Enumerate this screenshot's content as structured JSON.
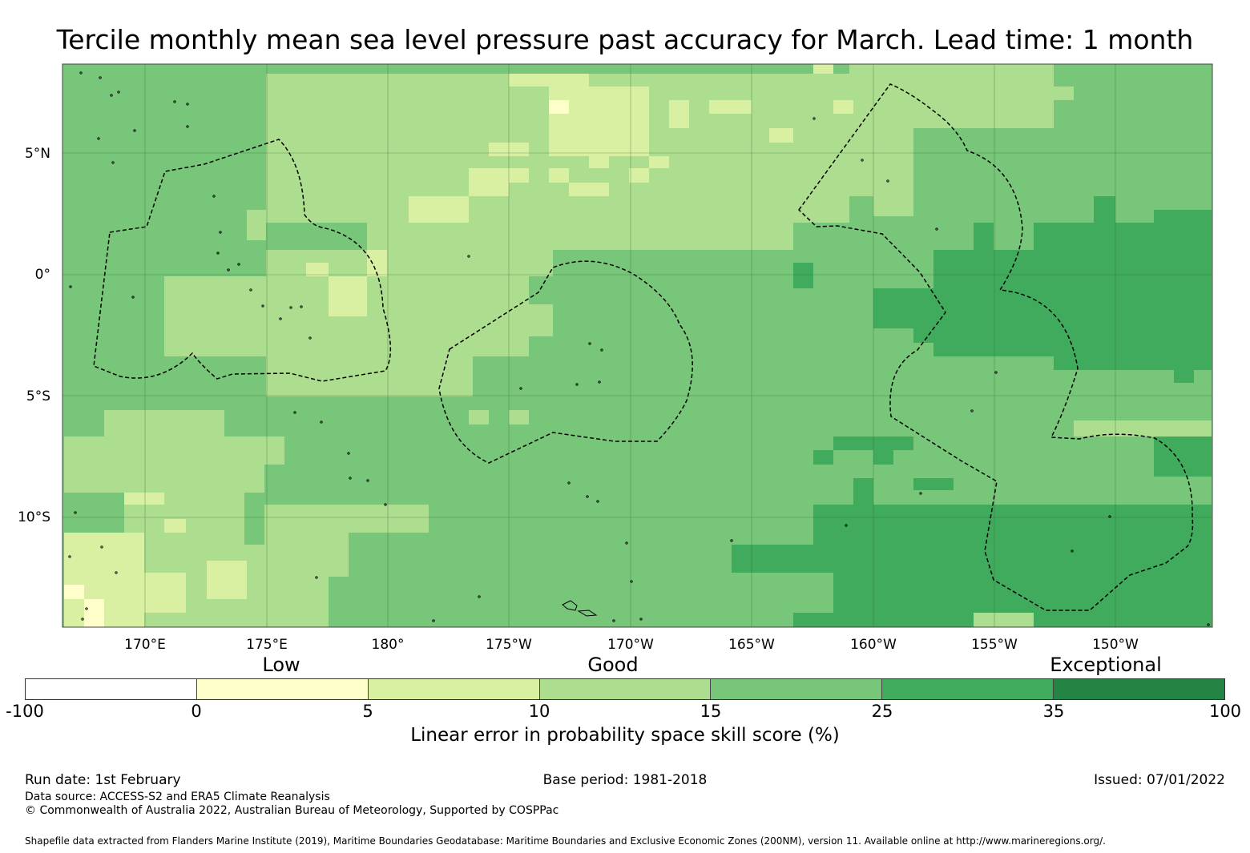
{
  "title": "Tercile monthly mean sea level pressure past accuracy for March. Lead time: 1 month",
  "colors": {
    "bin_0": "#ffffff",
    "bin_1": "#ffffcc",
    "bin_2": "#d9f0a3",
    "bin_3": "#addd8e",
    "bin_4": "#78c679",
    "bin_5": "#41ab5d",
    "bin_6": "#238443",
    "boundary": "#000000",
    "gridline": "#2f5f2f"
  },
  "map": {
    "lat_labels": [
      "5°N",
      "0°",
      "5°S",
      "10°S"
    ],
    "lon_labels": [
      "170°E",
      "175°E",
      "180°",
      "175°W",
      "170°W",
      "165°W",
      "160°W",
      "155°W",
      "150°W"
    ]
  },
  "legend": {
    "categories": [
      "Low",
      "Good",
      "Exceptional"
    ],
    "ticks": [
      "-100",
      "0",
      "5",
      "10",
      "15",
      "25",
      "35",
      "100"
    ],
    "label": "Linear error in probability space skill score (%)"
  },
  "footer": {
    "run_date": "Run date: 1st February",
    "base_period": "Base period: 1981-2018",
    "issued": "Issued: 07/01/2022",
    "data_source": "Data source: ACCESS-S2 and ERA5 Climate Reanalysis",
    "copyright": "© Commonwealth of Australia 2022, Australian Bureau of Meteorology, Supported by COSPPac",
    "shapefile": "Shapefile data extracted from Flanders Marine Institute (2019), Maritime Boundaries Geodatabase: Maritime Boundaries and Exclusive Economic Zones (200NM), version 11. Available online at http://www.marineregions.org/."
  }
}
